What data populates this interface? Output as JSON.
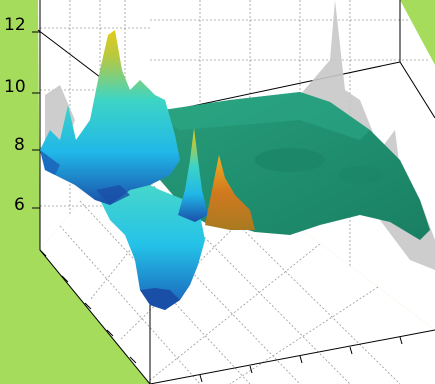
{
  "chart_data": {
    "type": "surface",
    "title": "",
    "xlabel": "",
    "ylabel": "",
    "zlabel": "",
    "z_ticks": [
      6,
      8,
      10,
      12
    ],
    "z_tick_labels": [
      "6",
      "8",
      "10",
      "12"
    ],
    "zlim": [
      4.6,
      13.2
    ],
    "grid": true,
    "colormap": "parula",
    "colormap_stops": [
      "#1a4fa8",
      "#21b7e8",
      "#3dd5c5",
      "#1f8f6f",
      "#b8b840",
      "#e0cc1a",
      "#d1791f"
    ],
    "background_color": "#a6dc5c",
    "plateau_level": 7.6,
    "peaks": [
      {
        "x": 0.18,
        "y": 0.35,
        "z": 12.6
      },
      {
        "x": 0.24,
        "y": 0.52,
        "z": 9.8
      },
      {
        "x": 0.1,
        "y": 0.4,
        "z": 9.2
      },
      {
        "x": 0.3,
        "y": 0.7,
        "z": 8.6
      },
      {
        "x": 0.35,
        "y": 0.75,
        "z": 8.2
      },
      {
        "x": 0.42,
        "y": 0.78,
        "z": 7.6
      }
    ]
  }
}
